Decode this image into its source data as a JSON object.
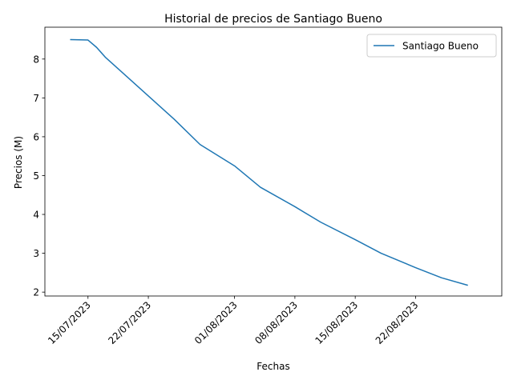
{
  "chart_data": {
    "type": "line",
    "title": "Historial de precios de Santiago Bueno",
    "xlabel": "Fechas",
    "ylabel": "Precios (M)",
    "x_tick_labels": [
      "15/07/2023",
      "22/07/2023",
      "01/08/2023",
      "08/08/2023",
      "15/08/2023",
      "22/08/2023"
    ],
    "x_tick_dates": [
      "2023-07-15",
      "2023-07-22",
      "2023-08-01",
      "2023-08-08",
      "2023-08-15",
      "2023-08-22"
    ],
    "xlim": [
      "2023-07-10",
      "2023-09-01"
    ],
    "ylim": [
      1.9,
      8.82
    ],
    "y_ticks": [
      2,
      3,
      4,
      5,
      6,
      7,
      8
    ],
    "grid": false,
    "legend_position": "upper right",
    "series": [
      {
        "name": "Santiago Bueno",
        "color": "#1f77b4",
        "points": [
          {
            "x": "2023-07-13",
            "y": 8.5
          },
          {
            "x": "2023-07-15",
            "y": 8.49
          },
          {
            "x": "2023-07-16",
            "y": 8.3
          },
          {
            "x": "2023-07-17",
            "y": 8.05
          },
          {
            "x": "2023-07-19",
            "y": 7.65
          },
          {
            "x": "2023-07-22",
            "y": 7.05
          },
          {
            "x": "2023-07-25",
            "y": 6.45
          },
          {
            "x": "2023-07-28",
            "y": 5.8
          },
          {
            "x": "2023-08-01",
            "y": 5.25
          },
          {
            "x": "2023-08-04",
            "y": 4.7
          },
          {
            "x": "2023-08-08",
            "y": 4.2
          },
          {
            "x": "2023-08-11",
            "y": 3.8
          },
          {
            "x": "2023-08-15",
            "y": 3.35
          },
          {
            "x": "2023-08-18",
            "y": 3.0
          },
          {
            "x": "2023-08-22",
            "y": 2.63
          },
          {
            "x": "2023-08-25",
            "y": 2.37
          },
          {
            "x": "2023-08-28",
            "y": 2.18
          }
        ]
      }
    ]
  }
}
